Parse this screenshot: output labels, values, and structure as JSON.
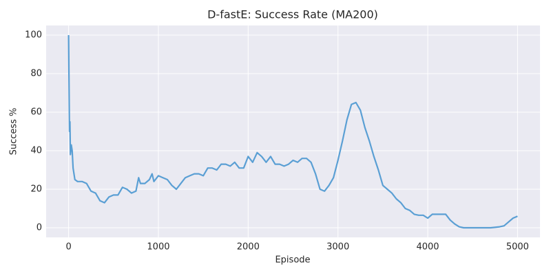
{
  "chart_data": {
    "type": "line",
    "title": "D-fastE: Success Rate (MA200)",
    "x_label": "Episode",
    "y_label": "Success %",
    "xlim": [
      -250,
      5250
    ],
    "ylim": [
      -5,
      105
    ],
    "xticks": [
      0,
      1000,
      2000,
      3000,
      4000,
      5000
    ],
    "yticks": [
      0,
      20,
      40,
      60,
      80,
      100
    ],
    "grid": true,
    "x": [
      0,
      5,
      10,
      15,
      20,
      30,
      40,
      50,
      70,
      100,
      150,
      200,
      250,
      300,
      350,
      400,
      450,
      500,
      550,
      600,
      650,
      700,
      750,
      780,
      800,
      850,
      900,
      930,
      950,
      1000,
      1050,
      1100,
      1150,
      1200,
      1250,
      1300,
      1350,
      1400,
      1450,
      1500,
      1550,
      1600,
      1650,
      1700,
      1750,
      1800,
      1850,
      1900,
      1950,
      2000,
      2050,
      2100,
      2150,
      2200,
      2250,
      2300,
      2350,
      2400,
      2450,
      2500,
      2550,
      2600,
      2650,
      2700,
      2750,
      2800,
      2850,
      2900,
      2950,
      3000,
      3050,
      3100,
      3150,
      3200,
      3250,
      3300,
      3350,
      3400,
      3450,
      3500,
      3550,
      3600,
      3650,
      3700,
      3750,
      3800,
      3850,
      3900,
      3950,
      4000,
      4050,
      4100,
      4150,
      4200,
      4250,
      4300,
      4350,
      4400,
      4500,
      4600,
      4700,
      4800,
      4850,
      4900,
      4950,
      5000
    ],
    "series": [
      {
        "name": "MA200",
        "color": "#5a9fd4",
        "values": [
          100,
          75,
          50,
          55,
          38,
          43,
          40,
          31,
          25,
          24,
          24,
          23,
          19,
          18,
          14,
          13,
          16,
          17,
          17,
          21,
          20,
          18,
          19,
          26,
          23,
          23,
          25,
          28,
          24,
          27,
          26,
          25,
          22,
          20,
          23,
          26,
          27,
          28,
          28,
          27,
          31,
          31,
          30,
          33,
          33,
          32,
          34,
          31,
          31,
          37,
          34,
          39,
          37,
          34,
          37,
          33,
          33,
          32,
          33,
          35,
          34,
          36,
          36,
          34,
          28,
          20,
          19,
          22,
          26,
          35,
          45,
          56,
          64,
          65,
          61,
          52,
          45,
          37,
          30,
          22,
          20,
          18,
          15,
          13,
          10,
          9,
          7,
          6.5,
          6.5,
          5,
          7,
          7,
          7,
          7,
          4,
          2,
          0.5,
          0,
          0,
          0,
          0,
          0.5,
          1,
          3,
          5,
          6
        ]
      }
    ]
  }
}
